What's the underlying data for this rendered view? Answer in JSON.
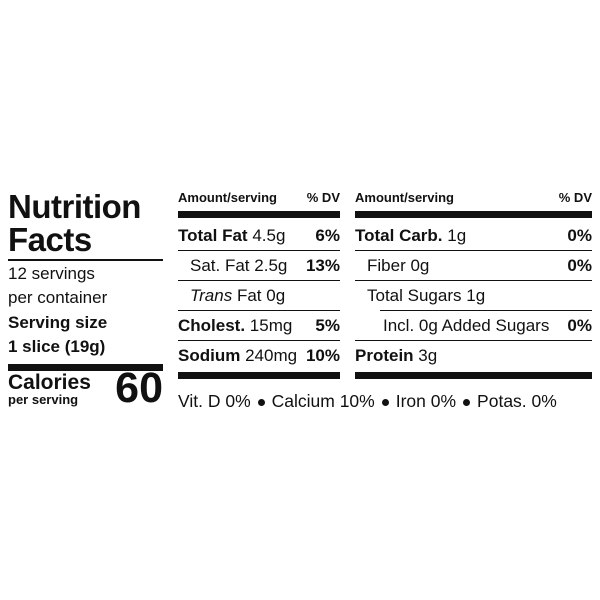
{
  "label": {
    "title": [
      "Nutrition",
      "Facts"
    ],
    "servings": [
      "12 servings",
      "per container"
    ],
    "serving_size": [
      "Serving size",
      "1 slice (19g)"
    ],
    "calories": {
      "label": "Calories",
      "sublabel": "per serving",
      "value": "60"
    },
    "columns": [
      {
        "header": [
          "Amount/serving",
          "% DV"
        ],
        "rows": [
          {
            "level": 0,
            "label": "Total Fat",
            "amount": "4.5g",
            "dv": "6%"
          },
          {
            "level": 1,
            "label": "Sat. Fat",
            "amount": "2.5g",
            "dv": "13%"
          },
          {
            "level": 1,
            "label_italic": "Trans",
            "label": "Fat",
            "amount": "0g"
          },
          {
            "level": 0,
            "label": "Cholest.",
            "amount": "15mg",
            "dv": "5%"
          },
          {
            "level": 0,
            "label": "Sodium",
            "amount": "240mg",
            "dv": "10%"
          }
        ]
      },
      {
        "header": [
          "Amount/serving",
          "% DV"
        ],
        "rows": [
          {
            "level": 0,
            "label": "Total Carb.",
            "amount": "1g",
            "dv": "0%"
          },
          {
            "level": 1,
            "label": "Fiber",
            "amount": "0g",
            "dv": "0%"
          },
          {
            "level": 1,
            "label": "Total Sugars",
            "amount": "1g"
          },
          {
            "level": 2,
            "label": "Incl. 0g Added Sugars",
            "dv": "0%"
          },
          {
            "level": 0,
            "label": "Protein",
            "amount": "3g"
          }
        ]
      }
    ],
    "footer": [
      "Vit. D 0%",
      "Calcium 10%",
      "Iron 0%",
      "Potas. 0%"
    ]
  }
}
